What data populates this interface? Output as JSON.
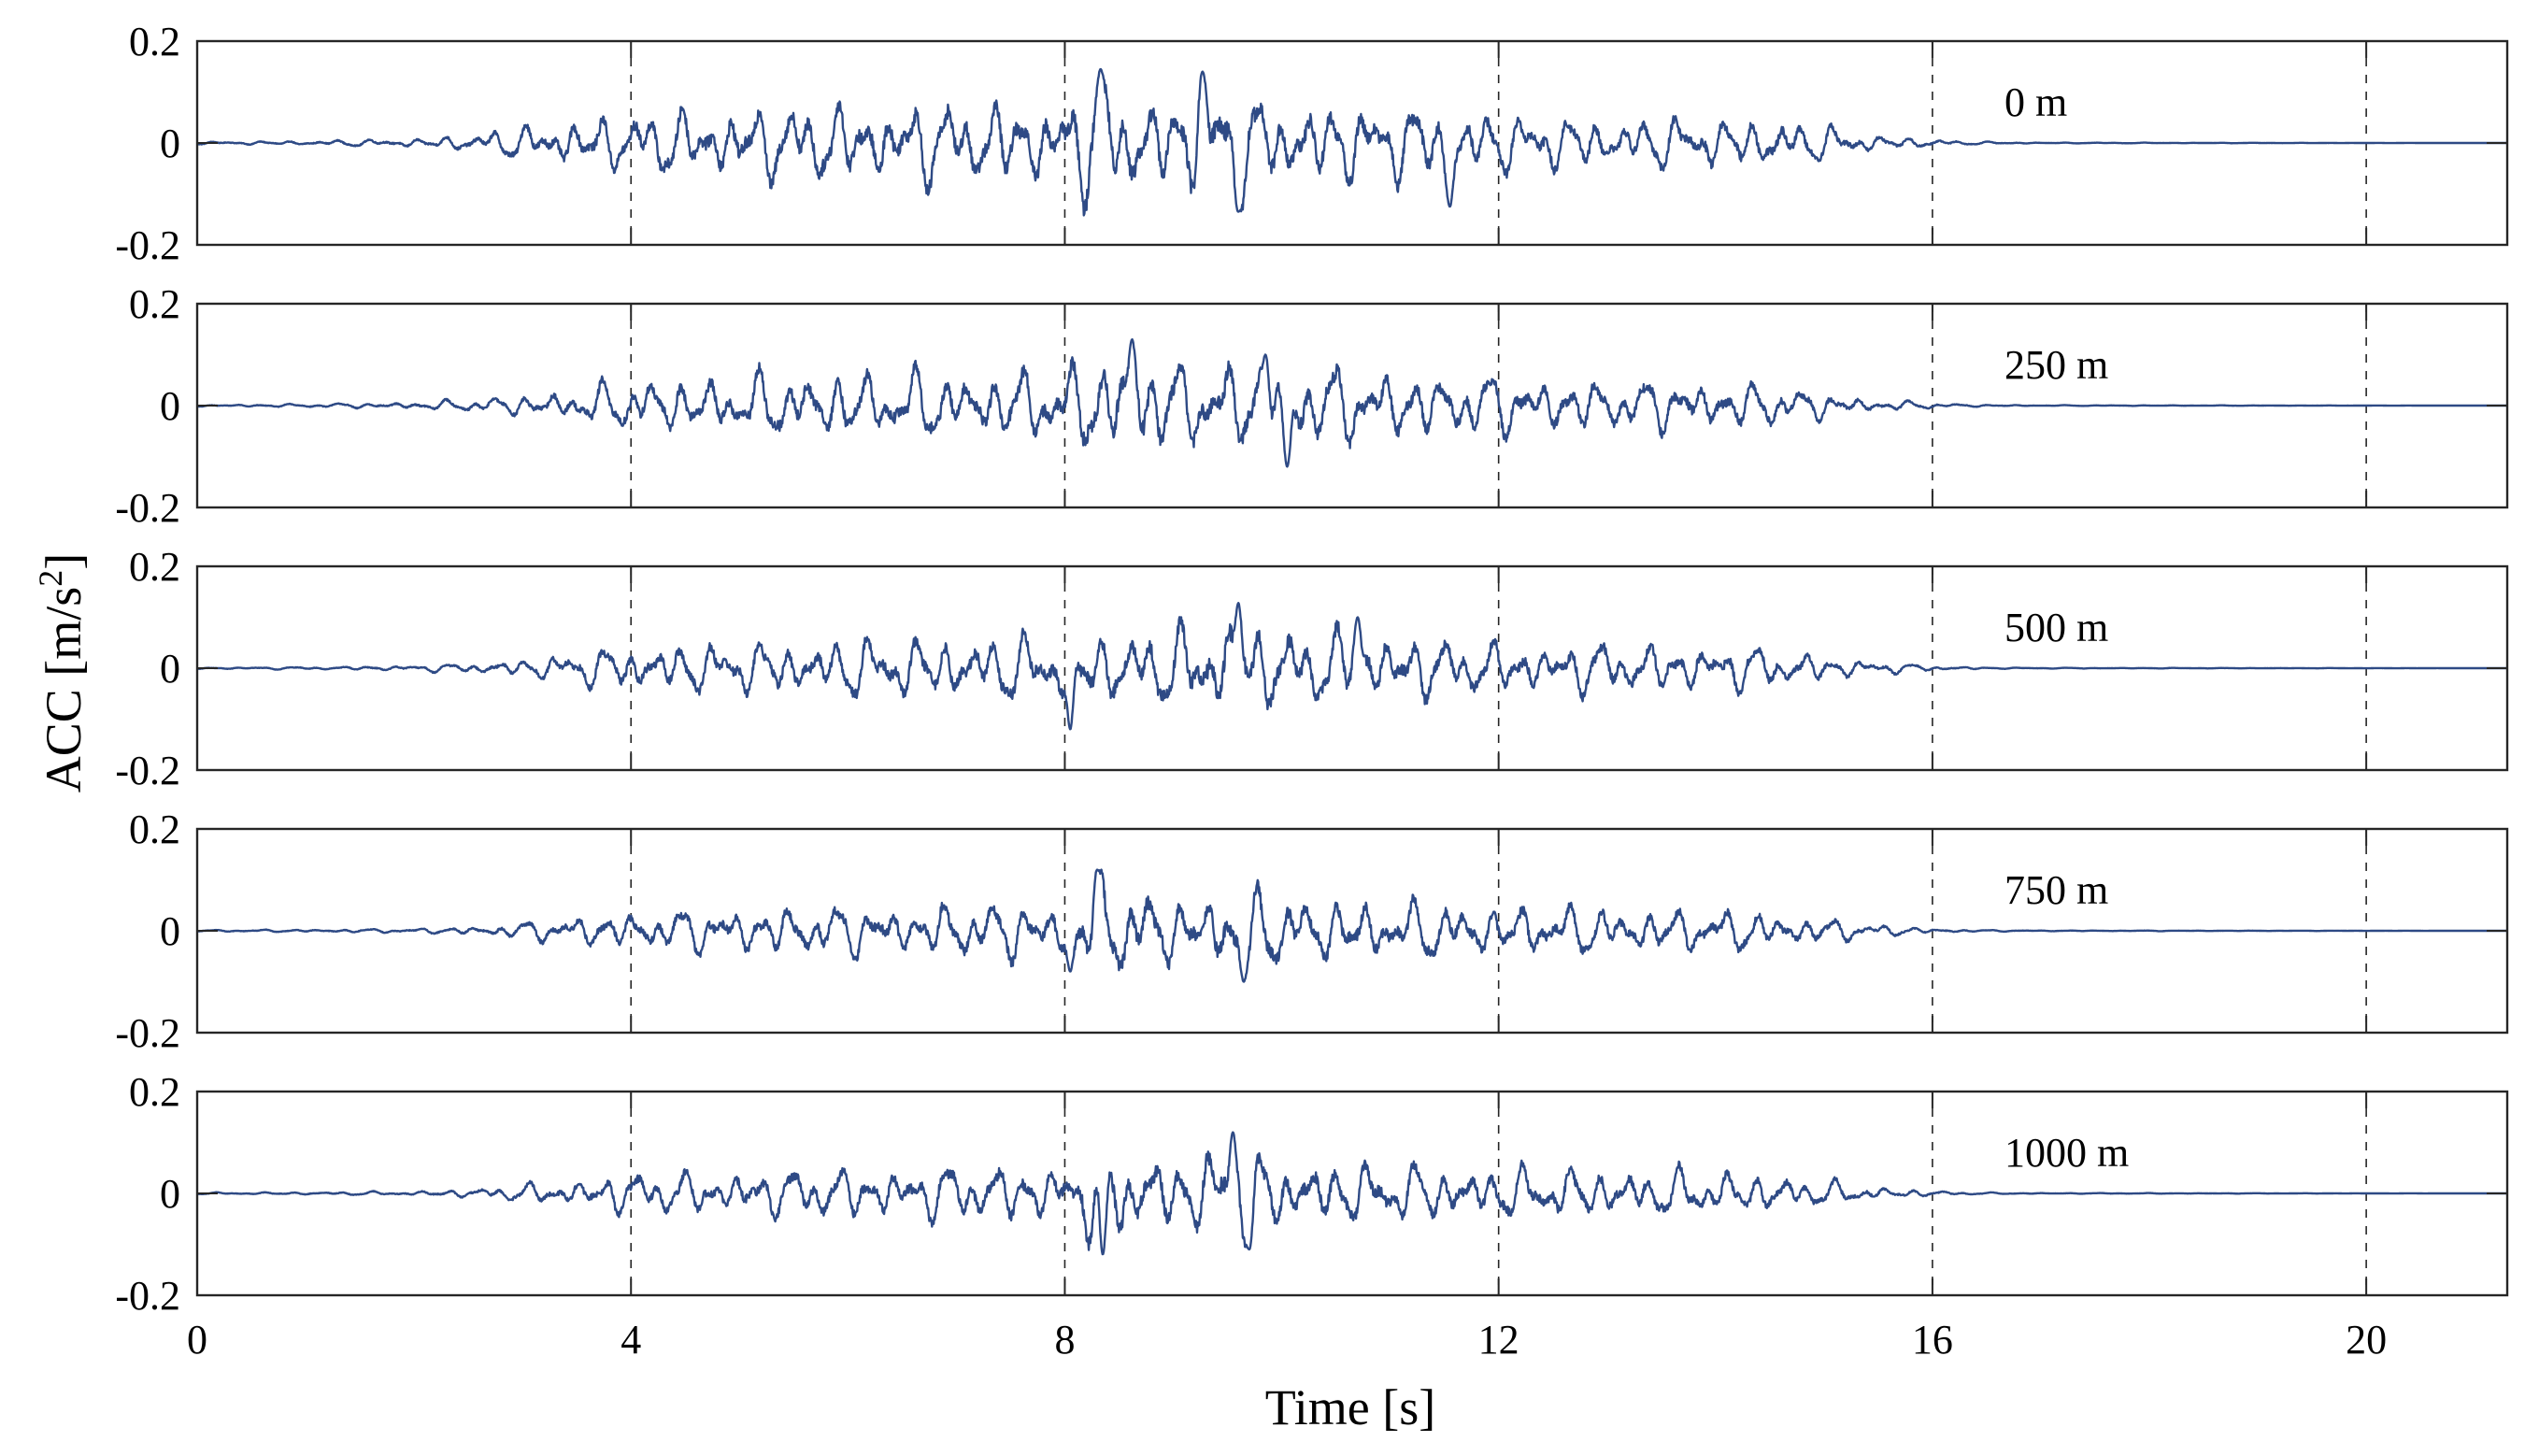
{
  "figure": {
    "ylabel_main": "ACC [m/s",
    "ylabel_exp": "2",
    "ylabel_close": "]",
    "xlabel": "Time [s]",
    "line_color": "#2e4a85"
  },
  "chart_data": [
    {
      "type": "line",
      "label": "0 m",
      "xlim": [
        0,
        21.3
      ],
      "ylim": [
        -0.2,
        0.2
      ],
      "xticks": [
        0,
        4,
        8,
        12,
        16,
        20
      ],
      "yticks": [
        -0.2,
        0,
        0.2
      ],
      "ytick_labels": [
        "-0.2",
        "0",
        "0.2"
      ],
      "grid": "vertical dashed at x ticks",
      "envelope": [
        [
          0,
          0.003
        ],
        [
          1,
          0.005
        ],
        [
          2,
          0.01
        ],
        [
          2.5,
          0.02
        ],
        [
          3,
          0.04
        ],
        [
          3.5,
          0.06
        ],
        [
          4,
          0.07
        ],
        [
          5,
          0.09
        ],
        [
          6,
          0.095
        ],
        [
          7,
          0.1
        ],
        [
          8,
          0.1
        ],
        [
          8.3,
          0.14
        ],
        [
          9,
          0.1
        ],
        [
          9.3,
          0.14
        ],
        [
          10,
          0.1
        ],
        [
          11,
          0.09
        ],
        [
          12,
          0.07
        ],
        [
          13,
          0.06
        ],
        [
          14,
          0.06
        ],
        [
          14.5,
          0.06
        ],
        [
          15,
          0.04
        ],
        [
          15.5,
          0.02
        ],
        [
          16,
          0.008
        ],
        [
          16.5,
          0.003
        ],
        [
          17,
          0.001
        ],
        [
          21.3,
          0
        ]
      ],
      "peaks": [
        [
          8.33,
          0.145
        ],
        [
          9.27,
          0.14
        ],
        [
          9.6,
          -0.135
        ],
        [
          11.55,
          -0.125
        ]
      ]
    },
    {
      "type": "line",
      "label": "250 m",
      "xlim": [
        0,
        21.3
      ],
      "ylim": [
        -0.2,
        0.2
      ],
      "xticks": [
        0,
        4,
        8,
        12,
        16,
        20
      ],
      "yticks": [
        -0.2,
        0,
        0.2
      ],
      "ytick_labels": [
        "-0.2",
        "0",
        "0.2"
      ],
      "grid": "vertical dashed at x ticks",
      "envelope": [
        [
          0,
          0.002
        ],
        [
          1,
          0.004
        ],
        [
          2,
          0.008
        ],
        [
          2.5,
          0.015
        ],
        [
          3,
          0.025
        ],
        [
          3.5,
          0.04
        ],
        [
          4,
          0.06
        ],
        [
          5,
          0.07
        ],
        [
          6,
          0.08
        ],
        [
          7,
          0.08
        ],
        [
          8,
          0.09
        ],
        [
          8.6,
          0.13
        ],
        [
          9,
          0.1
        ],
        [
          10,
          0.1
        ],
        [
          11,
          0.08
        ],
        [
          12,
          0.07
        ],
        [
          13,
          0.06
        ],
        [
          14,
          0.06
        ],
        [
          14.5,
          0.05
        ],
        [
          15,
          0.03
        ],
        [
          15.5,
          0.015
        ],
        [
          16,
          0.006
        ],
        [
          16.5,
          0.002
        ],
        [
          17,
          0.001
        ],
        [
          21.3,
          0
        ]
      ],
      "peaks": [
        [
          8.62,
          0.13
        ],
        [
          10.05,
          -0.12
        ],
        [
          9.85,
          0.1
        ]
      ]
    },
    {
      "type": "line",
      "label": "500 m",
      "xlim": [
        0,
        21.3
      ],
      "ylim": [
        -0.2,
        0.2
      ],
      "xticks": [
        0,
        4,
        8,
        12,
        16,
        20
      ],
      "yticks": [
        -0.2,
        0,
        0.2
      ],
      "ytick_labels": [
        "-0.2",
        "0",
        "0.2"
      ],
      "grid": "vertical dashed at x ticks",
      "envelope": [
        [
          0,
          0.002
        ],
        [
          1,
          0.003
        ],
        [
          2,
          0.006
        ],
        [
          2.5,
          0.012
        ],
        [
          3,
          0.02
        ],
        [
          3.5,
          0.04
        ],
        [
          4,
          0.055
        ],
        [
          5,
          0.06
        ],
        [
          6,
          0.07
        ],
        [
          7,
          0.075
        ],
        [
          8,
          0.08
        ],
        [
          9,
          0.09
        ],
        [
          9.6,
          0.125
        ],
        [
          10,
          0.09
        ],
        [
          11,
          0.08
        ],
        [
          12,
          0.06
        ],
        [
          13,
          0.06
        ],
        [
          14,
          0.055
        ],
        [
          14.5,
          0.05
        ],
        [
          15,
          0.03
        ],
        [
          15.5,
          0.015
        ],
        [
          16,
          0.006
        ],
        [
          16.5,
          0.002
        ],
        [
          17,
          0.001
        ],
        [
          21.3,
          0
        ]
      ],
      "peaks": [
        [
          9.6,
          0.128
        ],
        [
          8.05,
          -0.12
        ],
        [
          10.7,
          0.1
        ]
      ]
    },
    {
      "type": "line",
      "label": "750 m",
      "xlim": [
        0,
        21.3
      ],
      "ylim": [
        -0.2,
        0.2
      ],
      "xticks": [
        0,
        4,
        8,
        12,
        16,
        20
      ],
      "yticks": [
        -0.2,
        0,
        0.2
      ],
      "ytick_labels": [
        "-0.2",
        "0",
        "0.2"
      ],
      "grid": "vertical dashed at x ticks",
      "envelope": [
        [
          0,
          0.002
        ],
        [
          1,
          0.003
        ],
        [
          2,
          0.005
        ],
        [
          2.5,
          0.01
        ],
        [
          3,
          0.02
        ],
        [
          3.5,
          0.035
        ],
        [
          4,
          0.045
        ],
        [
          5,
          0.055
        ],
        [
          6,
          0.06
        ],
        [
          7,
          0.065
        ],
        [
          8,
          0.07
        ],
        [
          8.3,
          0.12
        ],
        [
          9,
          0.075
        ],
        [
          9.6,
          0.1
        ],
        [
          10,
          0.08
        ],
        [
          11,
          0.07
        ],
        [
          12,
          0.06
        ],
        [
          13,
          0.055
        ],
        [
          14,
          0.05
        ],
        [
          14.5,
          0.045
        ],
        [
          15,
          0.03
        ],
        [
          15.5,
          0.015
        ],
        [
          16,
          0.005
        ],
        [
          16.5,
          0.002
        ],
        [
          17,
          0.001
        ],
        [
          21.3,
          0
        ]
      ],
      "peaks": [
        [
          8.3,
          0.12
        ],
        [
          9.65,
          -0.1
        ],
        [
          8.05,
          -0.08
        ]
      ]
    },
    {
      "type": "line",
      "label": "1000 m",
      "xlim": [
        0,
        21.3
      ],
      "ylim": [
        -0.2,
        0.2
      ],
      "xticks": [
        0,
        4,
        8,
        12,
        16,
        20
      ],
      "yticks": [
        -0.2,
        0,
        0.2
      ],
      "ytick_labels": [
        "-0.2",
        "0",
        "0.2"
      ],
      "grid": "vertical dashed at x ticks",
      "envelope": [
        [
          0,
          0.002
        ],
        [
          1,
          0.003
        ],
        [
          2,
          0.005
        ],
        [
          2.5,
          0.01
        ],
        [
          3,
          0.02
        ],
        [
          3.5,
          0.035
        ],
        [
          4,
          0.05
        ],
        [
          5,
          0.055
        ],
        [
          6,
          0.06
        ],
        [
          7,
          0.065
        ],
        [
          8,
          0.07
        ],
        [
          8.3,
          0.12
        ],
        [
          9,
          0.08
        ],
        [
          9.5,
          0.12
        ],
        [
          10,
          0.08
        ],
        [
          11,
          0.07
        ],
        [
          12,
          0.06
        ],
        [
          13,
          0.06
        ],
        [
          14,
          0.055
        ],
        [
          14.5,
          0.045
        ],
        [
          15,
          0.03
        ],
        [
          15.5,
          0.015
        ],
        [
          16,
          0.006
        ],
        [
          16.5,
          0.002
        ],
        [
          17,
          0.001
        ],
        [
          21.3,
          0
        ]
      ],
      "peaks": [
        [
          9.55,
          0.12
        ],
        [
          8.35,
          -0.12
        ],
        [
          9.7,
          -0.11
        ]
      ]
    }
  ]
}
